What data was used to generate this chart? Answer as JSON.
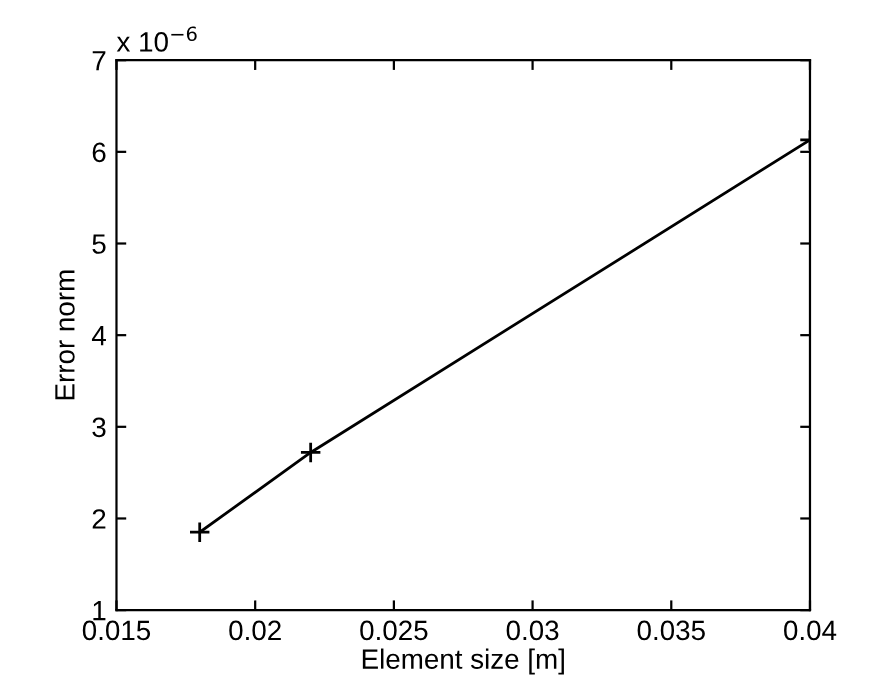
{
  "chart_data": {
    "type": "line",
    "xlabel": "Element size [m]",
    "ylabel": "Error norm",
    "x": [
      0.018,
      0.022,
      0.04
    ],
    "series": [
      {
        "color": "#000000",
        "values": [
          1.85,
          2.72,
          6.13
        ]
      }
    ],
    "marker": "cross",
    "line_style": "solid",
    "grid": false,
    "legend": false,
    "xlim": [
      0.015,
      0.04
    ],
    "xticks": [
      0.015,
      0.02,
      0.025,
      0.03,
      0.035,
      0.04
    ],
    "ylim": [
      1,
      7
    ],
    "yticks": [
      1,
      2,
      3,
      4,
      5,
      6,
      7
    ],
    "annotations": [
      "x 10$^{−6}$"
    ]
  }
}
